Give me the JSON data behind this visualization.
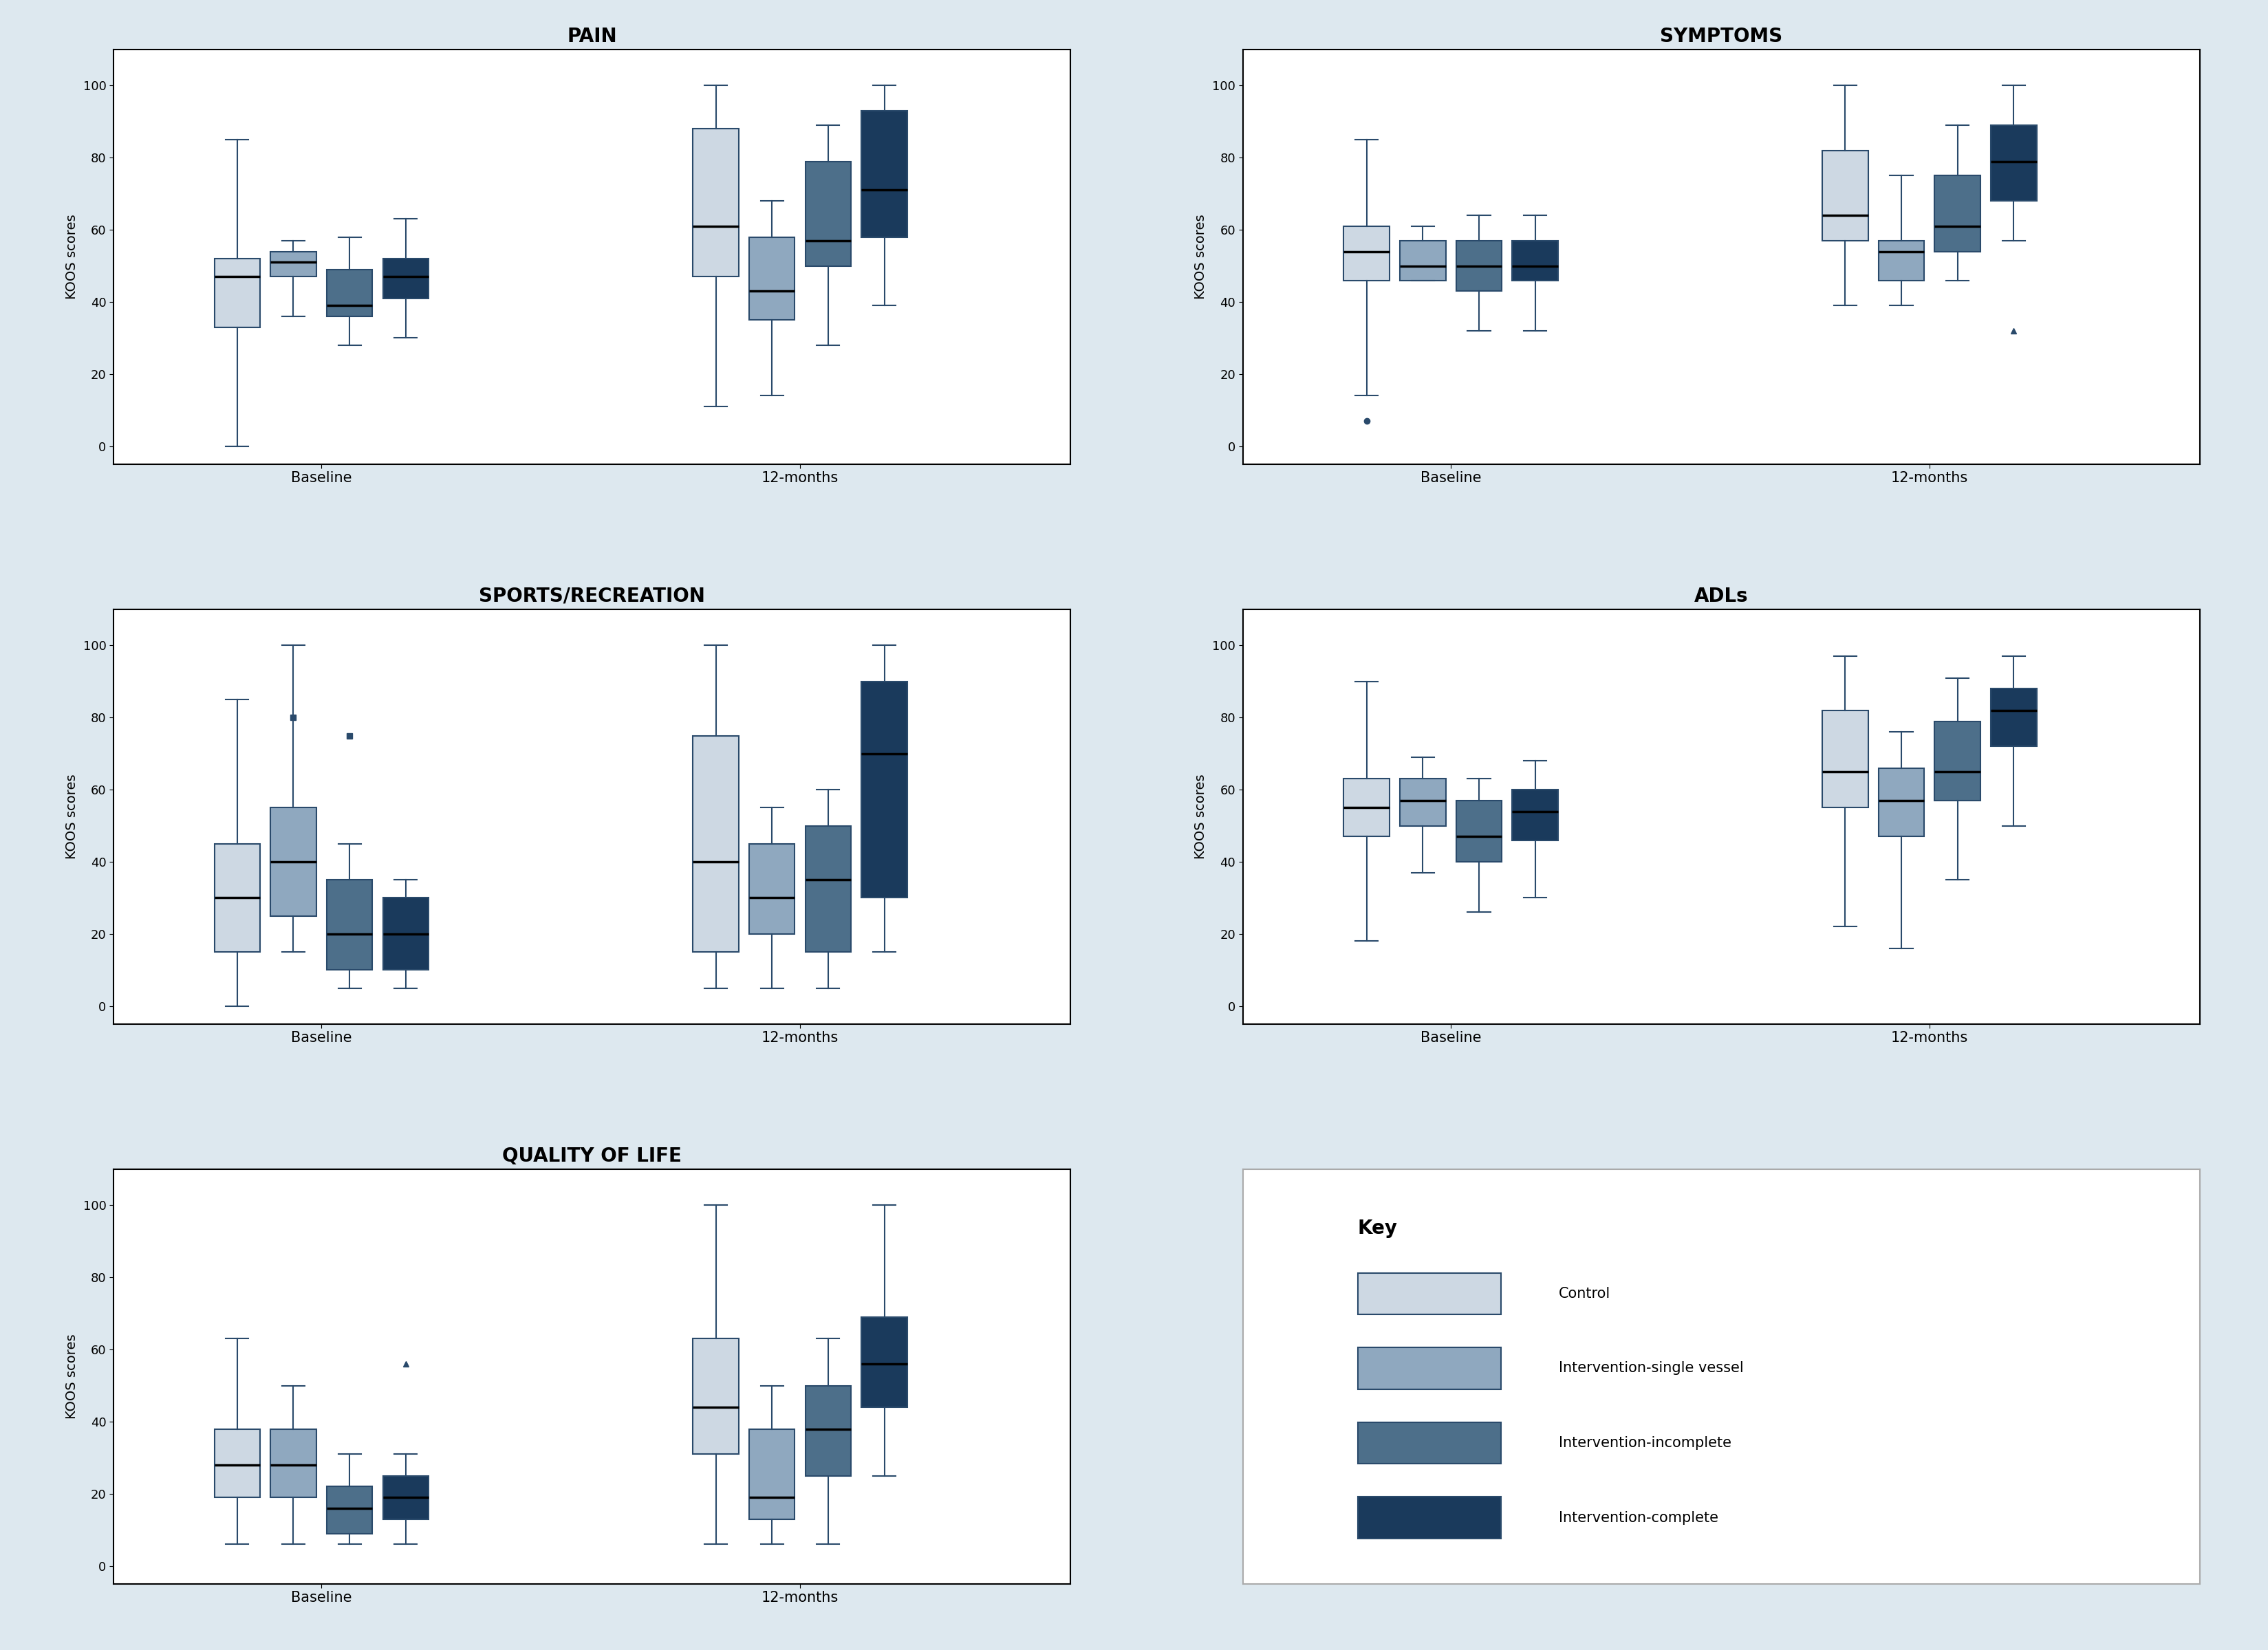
{
  "background_color": "#dde8ef",
  "panel_bg": "#ffffff",
  "title_fontsize": 20,
  "ylabel": "KOOS scores",
  "ylabel_fontsize": 14,
  "tick_fontsize": 13,
  "xlabel_fontsize": 15,
  "colors": {
    "control": "#cdd8e3",
    "single": "#8fa8bf",
    "incomplete": "#4d6f8a",
    "complete": "#1a3a5c"
  },
  "panels": [
    {
      "title": "PAIN",
      "groups": [
        {
          "label": "Baseline",
          "boxes": [
            {
              "q1": 33,
              "median": 47,
              "q3": 52,
              "whislo": 0,
              "whishi": 85,
              "color": "control"
            },
            {
              "q1": 47,
              "median": 51,
              "q3": 54,
              "whislo": 36,
              "whishi": 57,
              "color": "single"
            },
            {
              "q1": 36,
              "median": 39,
              "q3": 49,
              "whislo": 28,
              "whishi": 58,
              "color": "incomplete"
            },
            {
              "q1": 41,
              "median": 47,
              "q3": 52,
              "whislo": 30,
              "whishi": 63,
              "color": "complete"
            }
          ]
        },
        {
          "label": "12-months",
          "boxes": [
            {
              "q1": 47,
              "median": 61,
              "q3": 88,
              "whislo": 11,
              "whishi": 100,
              "color": "control"
            },
            {
              "q1": 35,
              "median": 43,
              "q3": 58,
              "whislo": 14,
              "whishi": 68,
              "color": "single"
            },
            {
              "q1": 50,
              "median": 57,
              "q3": 79,
              "whislo": 28,
              "whishi": 89,
              "color": "incomplete"
            },
            {
              "q1": 58,
              "median": 71,
              "q3": 93,
              "whislo": 39,
              "whishi": 100,
              "color": "complete"
            }
          ]
        }
      ]
    },
    {
      "title": "SYMPTOMS",
      "groups": [
        {
          "label": "Baseline",
          "boxes": [
            {
              "q1": 46,
              "median": 54,
              "q3": 61,
              "whislo": 14,
              "whishi": 85,
              "outliers": [
                7
              ],
              "color": "control"
            },
            {
              "q1": 46,
              "median": 50,
              "q3": 57,
              "whislo": 46,
              "whishi": 61,
              "color": "single"
            },
            {
              "q1": 43,
              "median": 50,
              "q3": 57,
              "whislo": 32,
              "whishi": 64,
              "color": "incomplete"
            },
            {
              "q1": 46,
              "median": 50,
              "q3": 57,
              "whislo": 32,
              "whishi": 64,
              "color": "complete"
            }
          ]
        },
        {
          "label": "12-months",
          "boxes": [
            {
              "q1": 57,
              "median": 64,
              "q3": 82,
              "whislo": 39,
              "whishi": 100,
              "color": "control"
            },
            {
              "q1": 46,
              "median": 54,
              "q3": 57,
              "whislo": 39,
              "whishi": 75,
              "color": "single"
            },
            {
              "q1": 54,
              "median": 61,
              "q3": 75,
              "whislo": 46,
              "whishi": 89,
              "color": "incomplete"
            },
            {
              "q1": 68,
              "median": 79,
              "q3": 89,
              "whislo": 57,
              "whishi": 100,
              "outliers": [
                32
              ],
              "color": "complete"
            }
          ]
        }
      ]
    },
    {
      "title": "SPORTS/RECREATION",
      "groups": [
        {
          "label": "Baseline",
          "boxes": [
            {
              "q1": 15,
              "median": 30,
              "q3": 45,
              "whislo": 0,
              "whishi": 85,
              "color": "control"
            },
            {
              "q1": 25,
              "median": 40,
              "q3": 55,
              "whislo": 15,
              "whishi": 100,
              "outliers": [
                80
              ],
              "color": "single"
            },
            {
              "q1": 10,
              "median": 20,
              "q3": 35,
              "whislo": 5,
              "whishi": 45,
              "outliers": [
                75
              ],
              "color": "incomplete"
            },
            {
              "q1": 10,
              "median": 20,
              "q3": 30,
              "whislo": 5,
              "whishi": 35,
              "color": "complete"
            }
          ]
        },
        {
          "label": "12-months",
          "boxes": [
            {
              "q1": 15,
              "median": 40,
              "q3": 75,
              "whislo": 5,
              "whishi": 100,
              "color": "control"
            },
            {
              "q1": 20,
              "median": 30,
              "q3": 45,
              "whislo": 5,
              "whishi": 55,
              "color": "single"
            },
            {
              "q1": 15,
              "median": 35,
              "q3": 50,
              "whislo": 5,
              "whishi": 60,
              "color": "incomplete"
            },
            {
              "q1": 30,
              "median": 70,
              "q3": 90,
              "whislo": 15,
              "whishi": 100,
              "color": "complete"
            }
          ]
        }
      ]
    },
    {
      "title": "ADLs",
      "groups": [
        {
          "label": "Baseline",
          "boxes": [
            {
              "q1": 47,
              "median": 55,
              "q3": 63,
              "whislo": 18,
              "whishi": 90,
              "color": "control"
            },
            {
              "q1": 50,
              "median": 57,
              "q3": 63,
              "whislo": 37,
              "whishi": 69,
              "color": "single"
            },
            {
              "q1": 40,
              "median": 47,
              "q3": 57,
              "whislo": 26,
              "whishi": 63,
              "color": "incomplete"
            },
            {
              "q1": 46,
              "median": 54,
              "q3": 60,
              "whislo": 30,
              "whishi": 68,
              "color": "complete"
            }
          ]
        },
        {
          "label": "12-months",
          "boxes": [
            {
              "q1": 55,
              "median": 65,
              "q3": 82,
              "whislo": 22,
              "whishi": 97,
              "color": "control"
            },
            {
              "q1": 47,
              "median": 57,
              "q3": 66,
              "whislo": 16,
              "whishi": 76,
              "color": "single"
            },
            {
              "q1": 57,
              "median": 65,
              "q3": 79,
              "whislo": 35,
              "whishi": 91,
              "color": "incomplete"
            },
            {
              "q1": 72,
              "median": 82,
              "q3": 88,
              "whislo": 50,
              "whishi": 97,
              "color": "complete"
            }
          ]
        }
      ]
    },
    {
      "title": "QUALITY OF LIFE",
      "groups": [
        {
          "label": "Baseline",
          "boxes": [
            {
              "q1": 19,
              "median": 28,
              "q3": 38,
              "whislo": 6,
              "whishi": 63,
              "color": "control"
            },
            {
              "q1": 19,
              "median": 28,
              "q3": 38,
              "whislo": 6,
              "whishi": 50,
              "color": "single"
            },
            {
              "q1": 9,
              "median": 16,
              "q3": 22,
              "whislo": 6,
              "whishi": 31,
              "color": "incomplete"
            },
            {
              "q1": 13,
              "median": 19,
              "q3": 25,
              "whislo": 6,
              "whishi": 31,
              "outliers": [
                56
              ],
              "color": "complete"
            }
          ]
        },
        {
          "label": "12-months",
          "boxes": [
            {
              "q1": 31,
              "median": 44,
              "q3": 63,
              "whislo": 6,
              "whishi": 100,
              "color": "control"
            },
            {
              "q1": 13,
              "median": 19,
              "q3": 38,
              "whislo": 6,
              "whishi": 50,
              "color": "single"
            },
            {
              "q1": 25,
              "median": 38,
              "q3": 50,
              "whislo": 6,
              "whishi": 63,
              "color": "incomplete"
            },
            {
              "q1": 44,
              "median": 56,
              "q3": 69,
              "whislo": 25,
              "whishi": 100,
              "color": "complete"
            }
          ]
        }
      ]
    }
  ],
  "legend": {
    "entries": [
      {
        "label": "Control",
        "color": "control"
      },
      {
        "label": "Intervention-single vessel",
        "color": "single"
      },
      {
        "label": "Intervention-incomplete",
        "color": "incomplete"
      },
      {
        "label": "Intervention-complete",
        "color": "complete"
      }
    ]
  }
}
